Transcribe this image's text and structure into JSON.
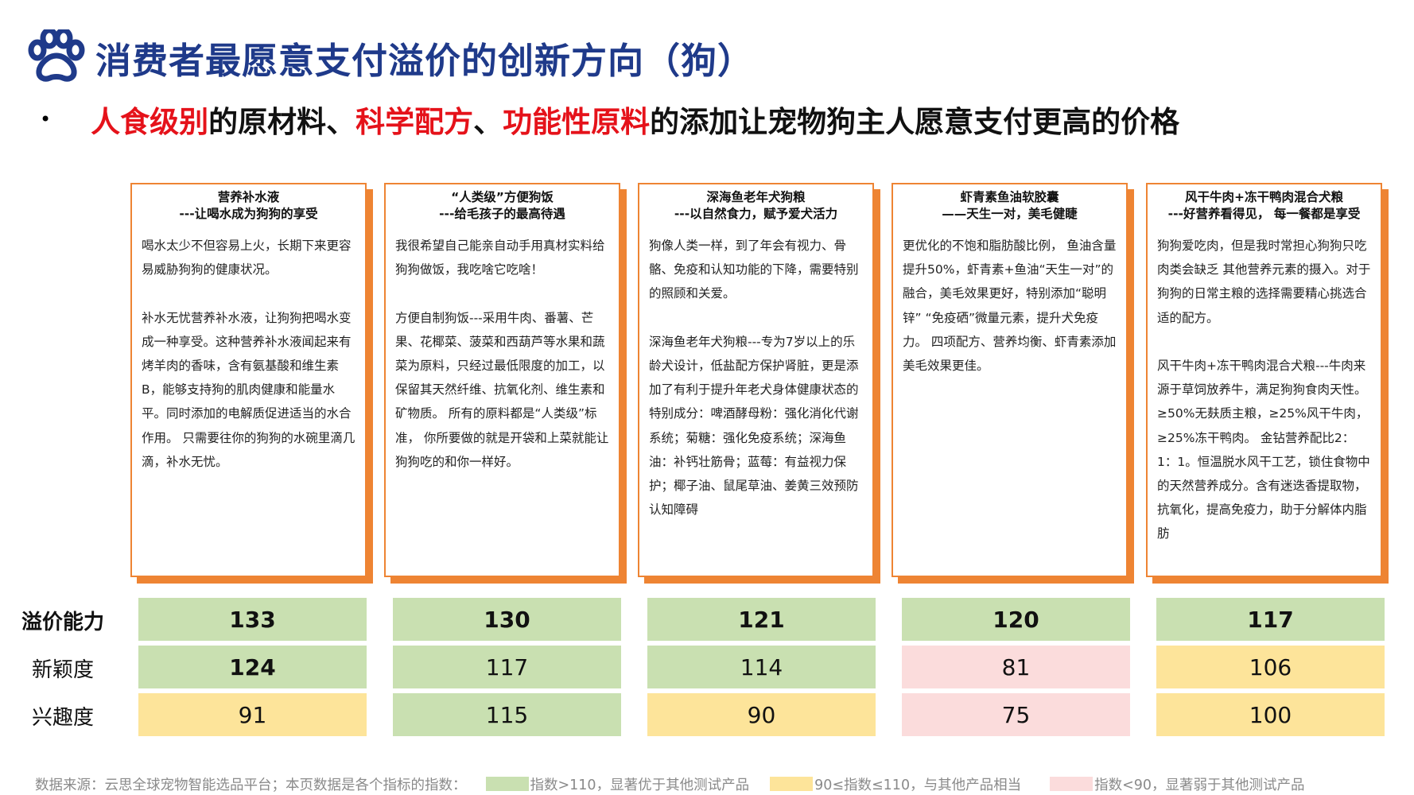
{
  "header": {
    "title": "消费者最愿意支付溢价的创新方向（狗）",
    "bullet": "•",
    "subtitle": {
      "part1": "人食级别",
      "part2": "的原材料、",
      "part3": "科学配方",
      "part4": "、",
      "part5": "功能性原料",
      "part6": "的添加让宠物狗主人愿意支付更高的价格"
    }
  },
  "cards": [
    {
      "title": "营养补水液",
      "tagline": "---让喝水成为狗狗的享受",
      "paragraphs": [
        "喝水太少不但容易上火，长期下来更容易威胁狗狗的健康状况。",
        "补水无忧营养补水液，让狗狗把喝水变成一种享受。这种营养补水液闻起来有烤羊肉的香味，含有氨基酸和维生素B，能够支持狗的肌肉健康和能量水平。同时添加的电解质促进适当的水合作用。 只需要往你的狗狗的水碗里滴几滴，补水无忧。"
      ]
    },
    {
      "title": "“人类级”方便狗饭",
      "tagline": "---给毛孩子的最高待遇",
      "paragraphs": [
        "我很希望自己能亲自动手用真材实料给狗狗做饭，我吃啥它吃啥！",
        "方便自制狗饭---采用牛肉、番薯、芒果、花椰菜、菠菜和西葫芦等水果和蔬菜为原料，只经过最低限度的加工，以保留其天然纤维、抗氧化剂、维生素和矿物质。 所有的原料都是“人类级”标准， 你所要做的就是开袋和上菜就能让狗狗吃的和你一样好。"
      ]
    },
    {
      "title": "深海鱼老年犬狗粮",
      "tagline": "---以自然食力，赋予爱犬活力",
      "paragraphs": [
        "狗像人类一样，到了年会有视力、骨骼、免疫和认知功能的下降，需要特别的照顾和关爱。",
        "深海鱼老年犬狗粮---专为7岁以上的乐龄犬设计，低盐配方保护肾脏，更是添加了有利于提升年老犬身体健康状态的特别成分：啤酒酵母粉：强化消化代谢系统；菊糖：强化免疫系统；深海鱼油：补钙壮筋骨；蓝莓：有益视力保护；椰子油、鼠尾草油、姜黄三效预防认知障碍"
      ]
    },
    {
      "title": "虾青素鱼油软胶囊",
      "tagline": "——天生一对，美毛健睫",
      "paragraphs": [
        "更优化的不饱和脂肪酸比例， 鱼油含量提升50%，虾青素+鱼油“天生一对”的融合，美毛效果更好，特别添加“聪明锌” “免疫硒”微量元素，提升犬免疫力。 四项配方、营养均衡、虾青素添加美毛效果更佳。"
      ]
    },
    {
      "title": "风干牛肉+冻干鸭肉混合犬粮",
      "tagline": "---好营养看得见， 每一餐都是享受",
      "paragraphs": [
        "狗狗爱吃肉，但是我时常担心狗狗只吃肉类会缺乏 其他营养元素的摄入。对于狗狗的日常主粮的选择需要精心挑选合适的配方。",
        "风干牛肉+冻干鸭肉混合犬粮---牛肉来源于草饲放养牛，满足狗狗食肉天性。≥50%无麸质主粮，≥25%风干牛肉，≥25%冻干鸭肉。 金钻营养配比2：1：1。恒温脱水风干工艺，锁住食物中的天然营养成分。含有迷迭香提取物，抗氧化，提高免疫力，助于分解体内脂肪"
      ]
    }
  ],
  "metrics": {
    "rows": [
      {
        "label": "溢价能力",
        "values": [
          "133",
          "130",
          "121",
          "120",
          "117"
        ],
        "levels": [
          "high",
          "high",
          "high",
          "high",
          "high"
        ]
      },
      {
        "label": "新颖度",
        "values": [
          "124",
          "117",
          "114",
          "81",
          "106"
        ],
        "levels": [
          "high",
          "high",
          "high",
          "low",
          "mid"
        ]
      },
      {
        "label": "兴趣度",
        "values": [
          "91",
          "115",
          "90",
          "75",
          "100"
        ],
        "levels": [
          "mid",
          "high",
          "mid",
          "low",
          "mid"
        ]
      }
    ],
    "colors": {
      "high": "#c9e0b1",
      "mid": "#fde49a",
      "low": "#fbdcdc"
    }
  },
  "footer": {
    "source": "数据来源：云思全球宠物智能选品平台；本页数据是各个指标的指数：",
    "legend": [
      {
        "text": "指数>110，显著优于其他测试产品",
        "color": "#c9e0b1"
      },
      {
        "text": "90≤指数≤110，与其他产品相当",
        "color": "#fde49a"
      },
      {
        "text": "指数<90，显著弱于其他测试产品",
        "color": "#fbdcdc"
      }
    ]
  },
  "icons": {
    "logo": "paw-icon",
    "logo_color": "#1f3a8a",
    "card_border": "#ee8433"
  }
}
